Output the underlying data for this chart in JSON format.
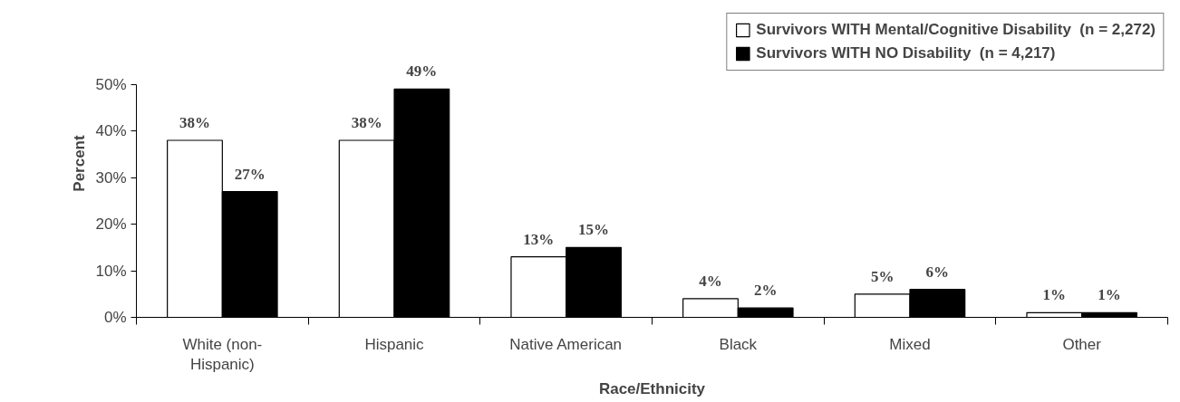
{
  "chart_data": {
    "type": "bar",
    "xlabel": "Race/Ethnicity",
    "ylabel": "Percent",
    "categories": [
      "White (non-\nHispanic)",
      "Hispanic",
      "Native American",
      "Black",
      "Mixed",
      "Other"
    ],
    "series": [
      {
        "name": "Survivors WITH Mental/Cognitive Disability  (n = 2,272)",
        "color": "#ffffff",
        "values": [
          38,
          38,
          13,
          4,
          5,
          1
        ],
        "value_labels": [
          "38%",
          "38%",
          "13%",
          "4%",
          "5%",
          "1%"
        ]
      },
      {
        "name": "Survivors WITH NO Disability  (n = 4,217)",
        "color": "#000000",
        "values": [
          27,
          49,
          15,
          2,
          6,
          1
        ],
        "value_labels": [
          "27%",
          "49%",
          "15%",
          "2%",
          "6%",
          "1%"
        ]
      }
    ],
    "ylim": [
      0,
      50
    ],
    "yticks": [
      {
        "value": 0,
        "label": "0%"
      },
      {
        "value": 10,
        "label": "10%"
      },
      {
        "value": 20,
        "label": "20%"
      },
      {
        "value": 30,
        "label": "30%"
      },
      {
        "value": 40,
        "label": "40%"
      },
      {
        "value": 50,
        "label": "50%"
      }
    ],
    "grid": false,
    "legend": "top right"
  }
}
